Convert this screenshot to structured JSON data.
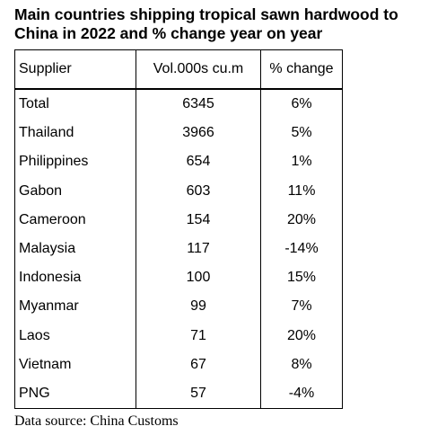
{
  "title": "Main countries shipping tropical sawn hardwood to China in 2022 and % change year on year",
  "table": {
    "header": [
      "Supplier",
      "Vol.000s  cu.m",
      "% change"
    ],
    "rows": [
      [
        "Total",
        "6345",
        "6%"
      ],
      [
        "Thailand",
        "3966",
        "5%"
      ],
      [
        "Philippines",
        "654",
        "1%"
      ],
      [
        "Gabon",
        "603",
        "11%"
      ],
      [
        "Cameroon",
        "154",
        "20%"
      ],
      [
        "Malaysia",
        "117",
        "-14%"
      ],
      [
        "Indonesia",
        "100",
        "15%"
      ],
      [
        "Myanmar",
        "99",
        "7%"
      ],
      [
        "Laos",
        "71",
        "20%"
      ],
      [
        "Vietnam",
        "67",
        "8%"
      ],
      [
        "PNG",
        "57",
        "-4%"
      ]
    ]
  },
  "source": "Data source: China Customs"
}
